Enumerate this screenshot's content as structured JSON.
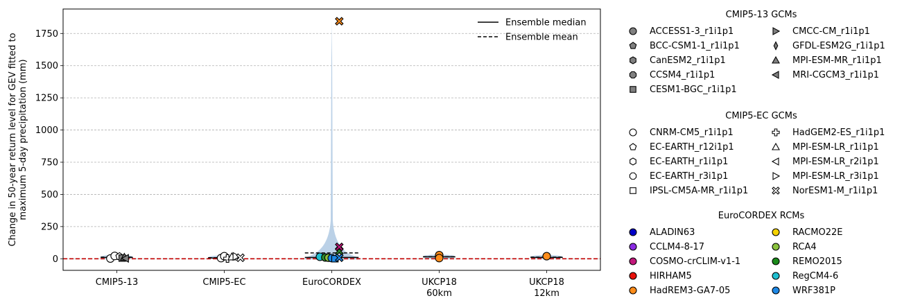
{
  "chart_data": {
    "type": "violin",
    "ylabel": "Change in 50-year return level for GEV fitted to\nmaximum 5-day precipitation (mm)",
    "ylim": [
      -90,
      1940
    ],
    "yticks": [
      0,
      250,
      500,
      750,
      1000,
      1250,
      1500,
      1750
    ],
    "ygrid": true,
    "zero_line": {
      "value": 0,
      "color": "#c00000",
      "style": "dashed"
    },
    "categories": [
      "CMIP5-13",
      "CMIP5-EC",
      "EuroCORDEX",
      "UKCP18\n60km",
      "UKCP18\n12km"
    ],
    "violin_color": "#b7cfe6",
    "violins": [
      {
        "category": "CMIP5-13",
        "median": 10,
        "mean": 12,
        "extent": [
          -5,
          30
        ],
        "halfwidth": 0.3
      },
      {
        "category": "CMIP5-EC",
        "median": 6,
        "mean": 8,
        "extent": [
          -5,
          25
        ],
        "halfwidth": 0.3
      },
      {
        "category": "EuroCORDEX",
        "median": 10,
        "mean": 45,
        "extent": [
          -5,
          1850
        ],
        "halfwidth": 0.5
      },
      {
        "category": "UKCP18\n60km",
        "median": 15,
        "mean": 16,
        "extent": [
          0,
          32
        ],
        "halfwidth": 0.3
      },
      {
        "category": "UKCP18\n12km",
        "median": 10,
        "mean": 12,
        "extent": [
          0,
          28
        ],
        "halfwidth": 0.3
      }
    ],
    "points": [
      {
        "category": "CMIP5-13",
        "offset": -0.12,
        "value": 2,
        "marker": "circle",
        "fill": "#ffffff"
      },
      {
        "category": "CMIP5-13",
        "offset": -0.04,
        "value": 22,
        "marker": "circle",
        "fill": "#ffffff"
      },
      {
        "category": "CMIP5-13",
        "offset": 0.05,
        "value": 18,
        "marker": "pentagon",
        "fill": "#ffffff"
      },
      {
        "category": "CMIP5-13",
        "offset": 0.1,
        "value": 5,
        "marker": "square",
        "fill": "#808080"
      },
      {
        "category": "CMIP5-13",
        "offset": 0.14,
        "value": 12,
        "marker": "triangle-up",
        "fill": "#808080"
      },
      {
        "category": "CMIP5-13",
        "offset": 0.16,
        "value": 3,
        "marker": "triangle-left",
        "fill": "#808080"
      },
      {
        "category": "CMIP5-EC",
        "offset": -0.06,
        "value": 5,
        "marker": "circle",
        "fill": "#ffffff"
      },
      {
        "category": "CMIP5-EC",
        "offset": 0.0,
        "value": 20,
        "marker": "circle",
        "fill": "#ffffff"
      },
      {
        "category": "CMIP5-EC",
        "offset": 0.06,
        "value": 2,
        "marker": "plus",
        "fill": "#ffffff"
      },
      {
        "category": "CMIP5-EC",
        "offset": 0.14,
        "value": 15,
        "marker": "triangle-up",
        "fill": "#ffffff"
      },
      {
        "category": "CMIP5-EC",
        "offset": 0.22,
        "value": 18,
        "marker": "triangle-right",
        "fill": "#ffffff"
      },
      {
        "category": "CMIP5-EC",
        "offset": 0.3,
        "value": 8,
        "marker": "x",
        "fill": "#ffffff"
      },
      {
        "category": "EuroCORDEX",
        "offset": -0.22,
        "value": 15,
        "marker": "circle",
        "fill": "#1fbfd0"
      },
      {
        "category": "EuroCORDEX",
        "offset": -0.12,
        "value": 10,
        "marker": "circle",
        "fill": "#2e8b2e"
      },
      {
        "category": "EuroCORDEX",
        "offset": -0.06,
        "value": 8,
        "marker": "circle",
        "fill": "#8ac23e"
      },
      {
        "category": "EuroCORDEX",
        "offset": 0.0,
        "value": 5,
        "marker": "circle",
        "fill": "#1e88e5"
      },
      {
        "category": "EuroCORDEX",
        "offset": 0.06,
        "value": 0,
        "marker": "square",
        "fill": "#1e88e5"
      },
      {
        "category": "EuroCORDEX",
        "offset": 0.14,
        "value": 60,
        "marker": "x",
        "fill": "#2e8b2e"
      },
      {
        "category": "EuroCORDEX",
        "offset": 0.14,
        "value": 92,
        "marker": "x",
        "fill": "#c2187b"
      },
      {
        "category": "EuroCORDEX",
        "offset": 0.14,
        "value": 8,
        "marker": "x",
        "fill": "#1e88e5"
      },
      {
        "category": "EuroCORDEX",
        "offset": 0.14,
        "value": 1845,
        "marker": "x",
        "fill": "#ff8c1a"
      },
      {
        "category": "UKCP18\n60km",
        "offset": 0.0,
        "value": 28,
        "marker": "circle",
        "fill": "#ff8c1a"
      },
      {
        "category": "UKCP18\n60km",
        "offset": 0.0,
        "value": 5,
        "marker": "circle",
        "fill": "#ff8c1a"
      },
      {
        "category": "UKCP18\n12km",
        "offset": 0.0,
        "value": 20,
        "marker": "circle",
        "fill": "#ff8c1a"
      }
    ],
    "legend_lines": [
      {
        "label": "Ensemble median",
        "style": "solid"
      },
      {
        "label": "Ensemble mean",
        "style": "dashed"
      }
    ],
    "legend_groups": [
      {
        "title": "CMIP5-13 GCMs",
        "columns": [
          [
            {
              "label": "ACCESS1-3_r1i1p1",
              "marker": "circle",
              "fill": "#808080"
            },
            {
              "label": "BCC-CSM1-1_r1i1p1",
              "marker": "pentagon",
              "fill": "#808080"
            },
            {
              "label": "CanESM2_r1i1p1",
              "marker": "hexagon",
              "fill": "#808080"
            },
            {
              "label": "CCSM4_r1i1p1",
              "marker": "octagon",
              "fill": "#808080"
            },
            {
              "label": "CESM1-BGC_r1i1p1",
              "marker": "square",
              "fill": "#808080"
            }
          ],
          [
            {
              "label": "CMCC-CM_r1i1p1",
              "marker": "triangle-right",
              "fill": "#808080"
            },
            {
              "label": "GFDL-ESM2G_r1i1p1",
              "marker": "thin-diamond",
              "fill": "#808080"
            },
            {
              "label": "MPI-ESM-MR_r1i1p1",
              "marker": "triangle-up",
              "fill": "#808080"
            },
            {
              "label": "MRI-CGCM3_r1i1p1",
              "marker": "triangle-left",
              "fill": "#808080"
            }
          ]
        ]
      },
      {
        "title": "CMIP5-EC GCMs",
        "columns": [
          [
            {
              "label": "CNRM-CM5_r1i1p1",
              "marker": "circle",
              "fill": "#ffffff"
            },
            {
              "label": "EC-EARTH_r12i1p1",
              "marker": "pentagon",
              "fill": "#ffffff"
            },
            {
              "label": "EC-EARTH_r1i1p1",
              "marker": "hexagon",
              "fill": "#ffffff"
            },
            {
              "label": "EC-EARTH_r3i1p1",
              "marker": "octagon",
              "fill": "#ffffff"
            },
            {
              "label": "IPSL-CM5A-MR_r1i1p1",
              "marker": "square",
              "fill": "#ffffff"
            }
          ],
          [
            {
              "label": "HadGEM2-ES_r1i1p1",
              "marker": "plus",
              "fill": "#ffffff"
            },
            {
              "label": "MPI-ESM-LR_r1i1p1",
              "marker": "triangle-up",
              "fill": "#ffffff"
            },
            {
              "label": "MPI-ESM-LR_r2i1p1",
              "marker": "triangle-left",
              "fill": "#ffffff"
            },
            {
              "label": "MPI-ESM-LR_r3i1p1",
              "marker": "triangle-right",
              "fill": "#ffffff"
            },
            {
              "label": "NorESM1-M_r1i1p1",
              "marker": "x",
              "fill": "#ffffff"
            }
          ]
        ]
      },
      {
        "title": "EuroCORDEX RCMs",
        "columns": [
          [
            {
              "label": "ALADIN63",
              "marker": "circle",
              "fill": "#0000c8"
            },
            {
              "label": "CCLM4-8-17",
              "marker": "circle",
              "fill": "#8a2be2"
            },
            {
              "label": "COSMO-crCLIM-v1-1",
              "marker": "circle",
              "fill": "#c2187b"
            },
            {
              "label": "HIRHAM5",
              "marker": "circle",
              "fill": "#e8120c"
            },
            {
              "label": "HadREM3-GA7-05",
              "marker": "circle",
              "fill": "#ff8c1a"
            }
          ],
          [
            {
              "label": "RACMO22E",
              "marker": "circle",
              "fill": "#f5d300"
            },
            {
              "label": "RCA4",
              "marker": "circle",
              "fill": "#8ac23e"
            },
            {
              "label": "REMO2015",
              "marker": "circle",
              "fill": "#1a8a1a"
            },
            {
              "label": "RegCM4-6",
              "marker": "circle",
              "fill": "#1fbfd0"
            },
            {
              "label": "WRF381P",
              "marker": "circle",
              "fill": "#1e88e5"
            }
          ]
        ]
      }
    ]
  }
}
